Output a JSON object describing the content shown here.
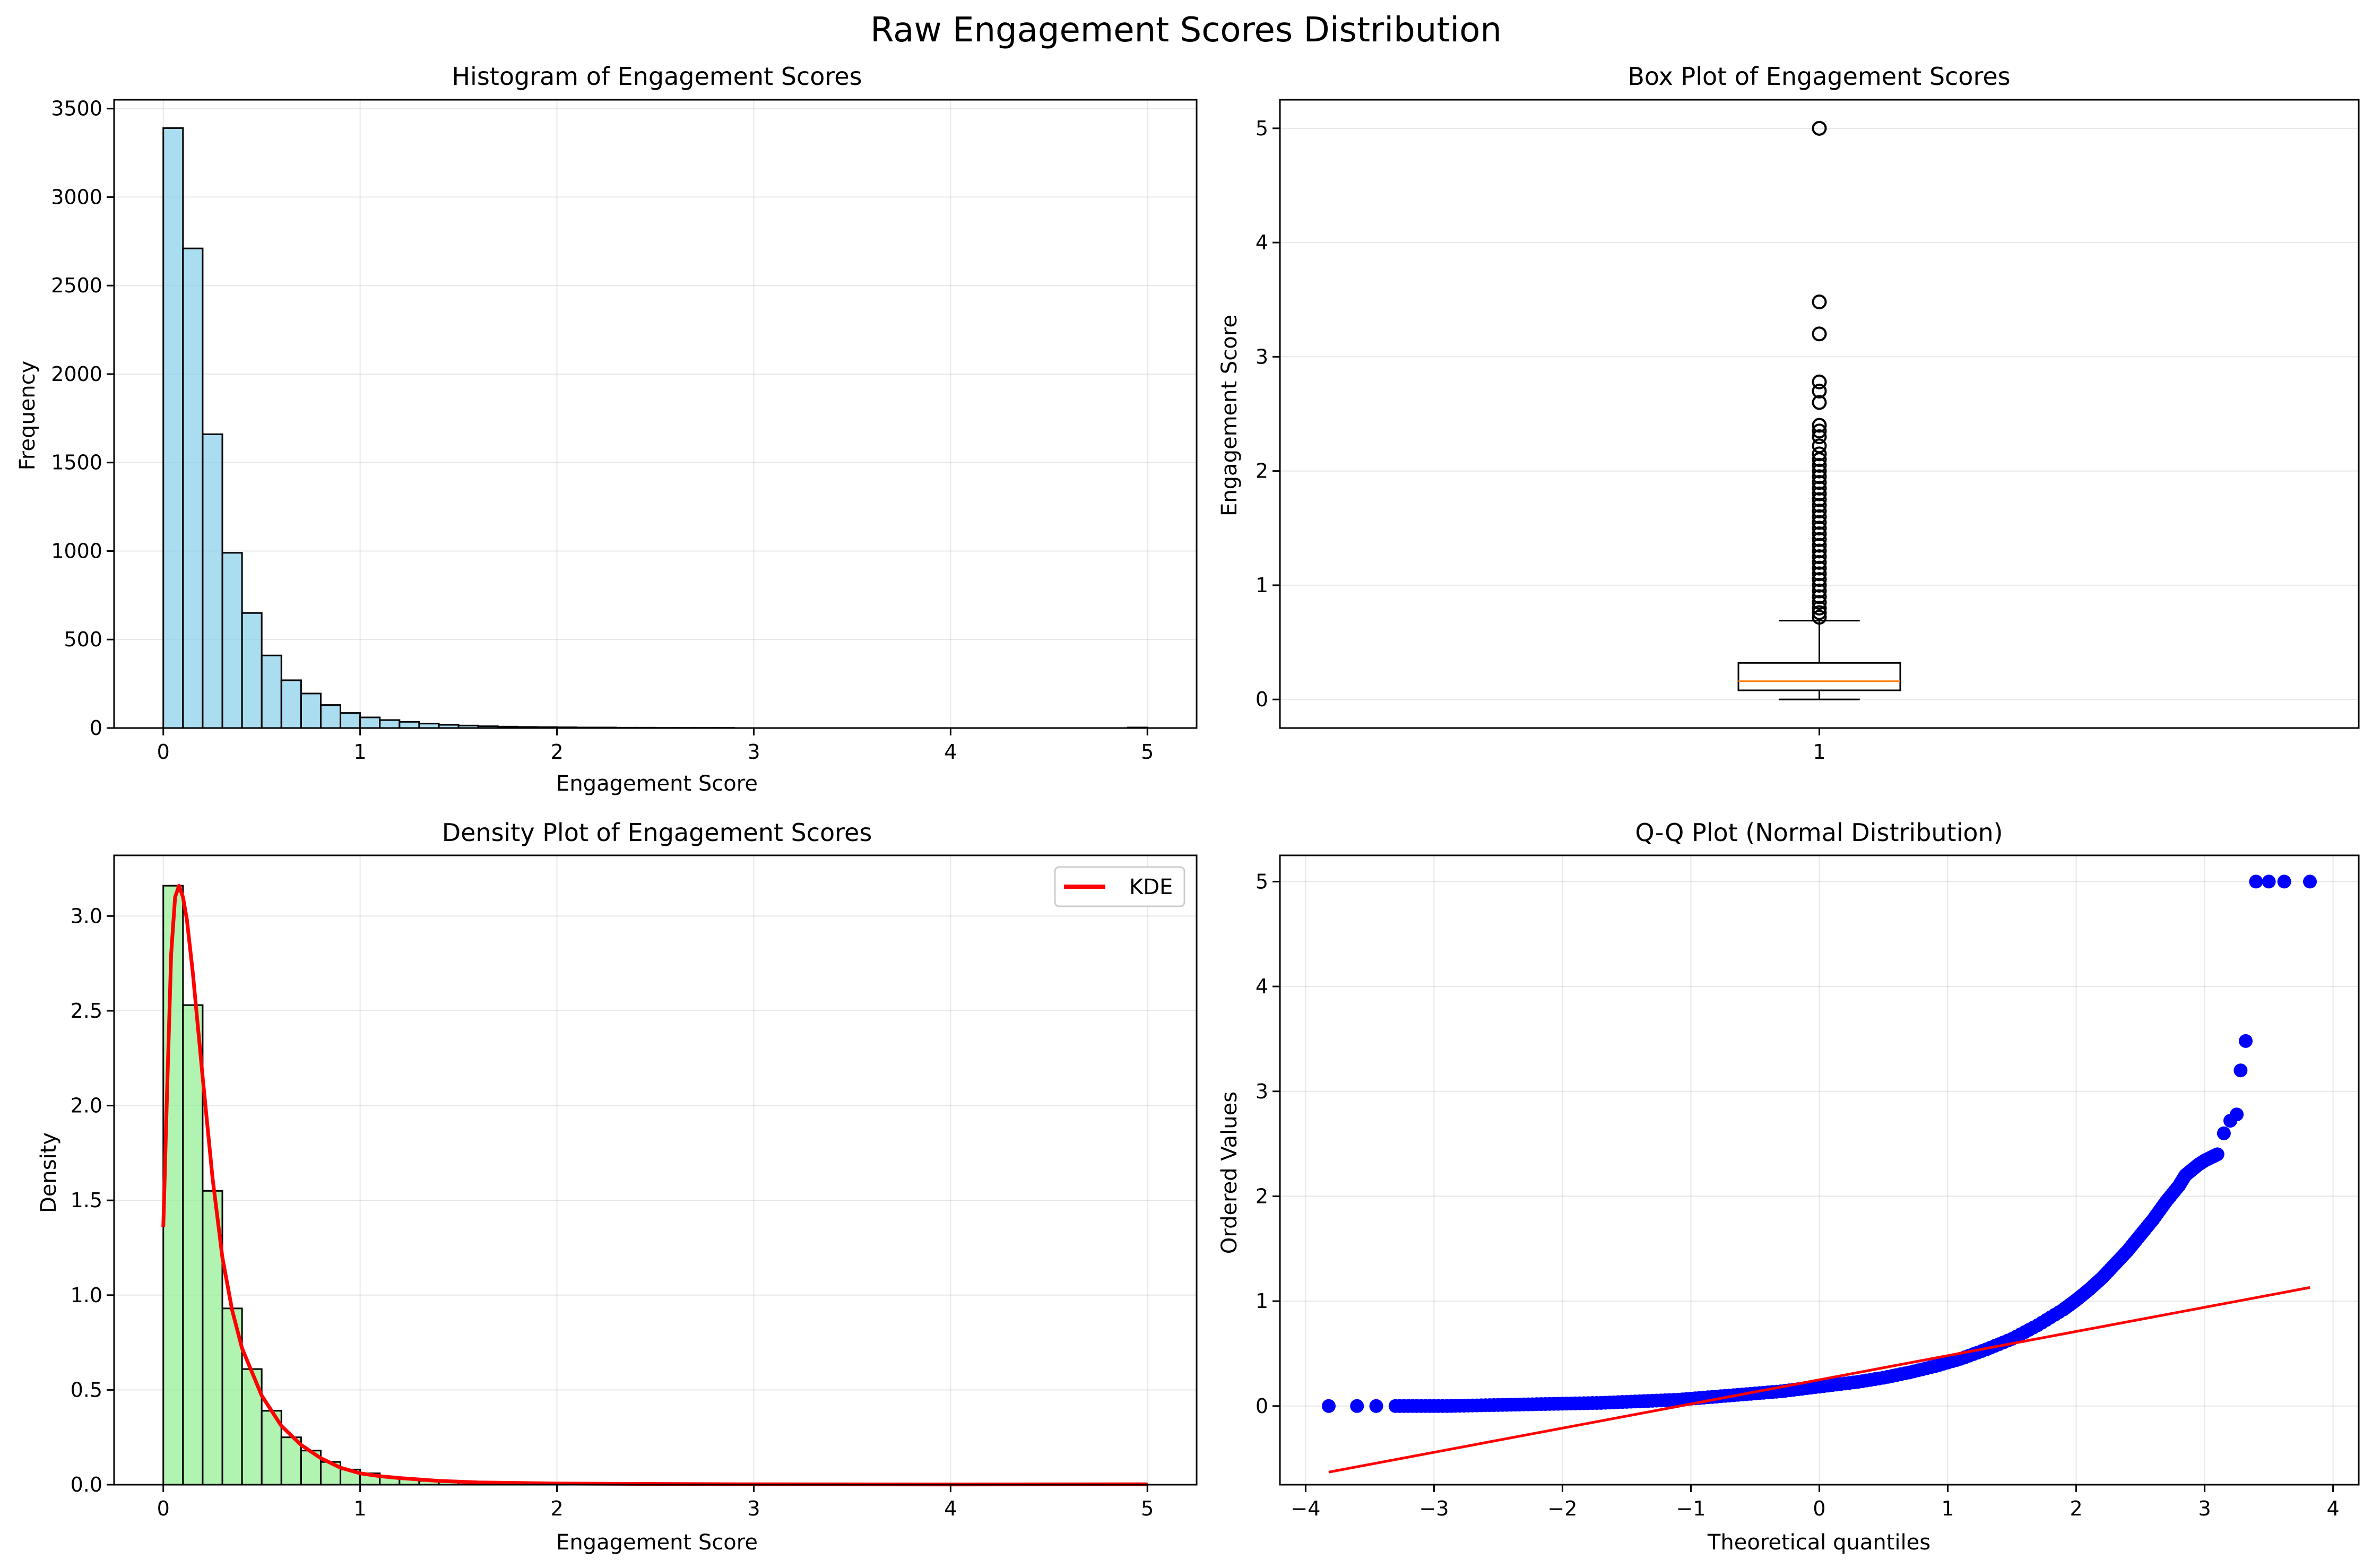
{
  "suptitle": "Raw Engagement Scores Distribution",
  "colors": {
    "hist_fill": "#87ceeb",
    "density_fill": "#90ee90",
    "kde": "#ff0000",
    "qq_points": "#0000ff",
    "qq_line": "#ff0000",
    "median": "#ff7f0e",
    "grid": "#b0b0b0"
  },
  "chart_data": [
    {
      "type": "bar",
      "title": "Histogram of Engagement Scores",
      "xlabel": "Engagement Score",
      "ylabel": "Frequency",
      "xlim": [
        -0.25,
        5.25
      ],
      "ylim": [
        0,
        3550
      ],
      "xticks": [
        "0",
        "1",
        "2",
        "3",
        "4",
        "5"
      ],
      "yticks": [
        "0",
        "500",
        "1000",
        "1500",
        "2000",
        "2500",
        "3000",
        "3500"
      ],
      "grid": true,
      "bin_start": 0,
      "bin_width": 0.1,
      "values": [
        3390,
        2710,
        1660,
        990,
        650,
        410,
        270,
        195,
        130,
        85,
        60,
        45,
        35,
        25,
        18,
        14,
        10,
        8,
        6,
        5,
        4,
        3,
        3,
        2,
        2,
        1,
        1,
        1,
        1,
        0,
        0,
        0,
        0,
        0,
        0,
        0,
        0,
        0,
        0,
        0,
        0,
        0,
        0,
        0,
        0,
        0,
        0,
        0,
        0,
        3
      ]
    },
    {
      "type": "box",
      "title": "Box Plot of Engagement Scores",
      "ylabel": "Engagement Score",
      "xticks": [
        "1"
      ],
      "yticks": [
        "0",
        "1",
        "2",
        "3",
        "4",
        "5"
      ],
      "ylim": [
        -0.25,
        5.25
      ],
      "grid": true,
      "whisker_low": 0.0,
      "q1": 0.08,
      "median": 0.16,
      "q3": 0.32,
      "whisker_high": 0.69,
      "outliers": [
        5.0,
        3.48,
        3.2,
        2.78,
        2.7,
        2.6,
        2.4,
        2.35,
        2.3,
        2.22,
        2.15,
        2.1,
        2.05,
        2.0,
        1.95,
        1.9,
        1.85,
        1.8,
        1.75,
        1.7,
        1.65,
        1.6,
        1.55,
        1.5,
        1.45,
        1.4,
        1.35,
        1.3,
        1.25,
        1.2,
        1.15,
        1.1,
        1.05,
        1.0,
        0.95,
        0.9,
        0.85,
        0.8,
        0.76,
        0.72
      ]
    },
    {
      "type": "bar",
      "title": "Density Plot of Engagement Scores",
      "xlabel": "Engagement Score",
      "ylabel": "Density",
      "xlim": [
        -0.25,
        5.25
      ],
      "ylim": [
        0,
        3.32
      ],
      "xticks": [
        "0",
        "1",
        "2",
        "3",
        "4",
        "5"
      ],
      "yticks": [
        "0.0",
        "0.5",
        "1.0",
        "1.5",
        "2.0",
        "2.5",
        "3.0"
      ],
      "grid": true,
      "legend": [
        "KDE"
      ],
      "legend_position": "top-right",
      "bin_start": 0,
      "bin_width": 0.1,
      "values": [
        3.16,
        2.53,
        1.55,
        0.93,
        0.61,
        0.39,
        0.25,
        0.18,
        0.12,
        0.08,
        0.06,
        0.04,
        0.03,
        0.02,
        0.017,
        0.013,
        0.01,
        0.008,
        0.006,
        0.005,
        0.004,
        0.003,
        0.003,
        0.002,
        0.002,
        0.001,
        0.001,
        0.001,
        0.001,
        0,
        0,
        0,
        0,
        0,
        0,
        0,
        0,
        0,
        0,
        0,
        0,
        0,
        0,
        0,
        0,
        0,
        0,
        0,
        0,
        0.003
      ],
      "kde": {
        "name": "KDE",
        "x": [
          0,
          0.02,
          0.04,
          0.06,
          0.08,
          0.1,
          0.12,
          0.15,
          0.2,
          0.25,
          0.3,
          0.35,
          0.4,
          0.5,
          0.6,
          0.7,
          0.8,
          0.9,
          1.0,
          1.1,
          1.2,
          1.4,
          1.6,
          1.8,
          2.0,
          2.5,
          3.0,
          4.0,
          5.0
        ],
        "y": [
          1.36,
          2.1,
          2.8,
          3.1,
          3.16,
          3.1,
          2.98,
          2.7,
          2.15,
          1.62,
          1.2,
          0.92,
          0.72,
          0.47,
          0.31,
          0.21,
          0.14,
          0.09,
          0.06,
          0.045,
          0.035,
          0.02,
          0.012,
          0.009,
          0.006,
          0.004,
          0.002,
          0.001,
          0.002
        ]
      }
    },
    {
      "type": "scatter",
      "title": "Q-Q Plot (Normal Distribution)",
      "xlabel": "Theoretical quantiles",
      "ylabel": "Ordered Values",
      "xlim": [
        -4.2,
        4.2
      ],
      "ylim": [
        -0.75,
        5.25
      ],
      "xticks": [
        "−4",
        "−3",
        "−2",
        "−1",
        "0",
        "1",
        "2",
        "3",
        "4"
      ],
      "yticks": [
        "0",
        "1",
        "2",
        "3",
        "4",
        "5"
      ],
      "grid": true,
      "fit_line": {
        "x": [
          -3.82,
          3.82
        ],
        "y": [
          -0.63,
          1.13
        ]
      },
      "points": {
        "x": [
          -3.82,
          -3.6,
          -3.45,
          -3.3,
          -3.1,
          -2.9,
          -2.7,
          -2.5,
          -2.3,
          -2.1,
          -1.9,
          -1.7,
          -1.5,
          -1.3,
          -1.1,
          -0.9,
          -0.7,
          -0.5,
          -0.3,
          -0.1,
          0.1,
          0.3,
          0.5,
          0.7,
          0.9,
          1.1,
          1.3,
          1.5,
          1.7,
          1.9,
          2.0,
          2.1,
          2.2,
          2.3,
          2.4,
          2.5,
          2.6,
          2.7,
          2.8,
          2.85,
          2.9,
          2.95,
          3.0,
          3.05,
          3.1,
          3.15,
          3.2,
          3.25,
          3.28,
          3.32,
          3.4,
          3.5,
          3.62,
          3.82
        ],
        "y": [
          0.0,
          0.0,
          0.0,
          0.0,
          0.0,
          0.0,
          0.005,
          0.01,
          0.015,
          0.02,
          0.025,
          0.03,
          0.04,
          0.05,
          0.06,
          0.08,
          0.1,
          0.12,
          0.14,
          0.17,
          0.2,
          0.23,
          0.27,
          0.32,
          0.38,
          0.45,
          0.54,
          0.64,
          0.77,
          0.92,
          1.01,
          1.11,
          1.22,
          1.35,
          1.48,
          1.63,
          1.78,
          1.95,
          2.1,
          2.2,
          2.25,
          2.3,
          2.34,
          2.37,
          2.4,
          2.6,
          2.72,
          2.78,
          3.2,
          3.48,
          5.0,
          5.0,
          5.0,
          5.0
        ]
      }
    }
  ]
}
